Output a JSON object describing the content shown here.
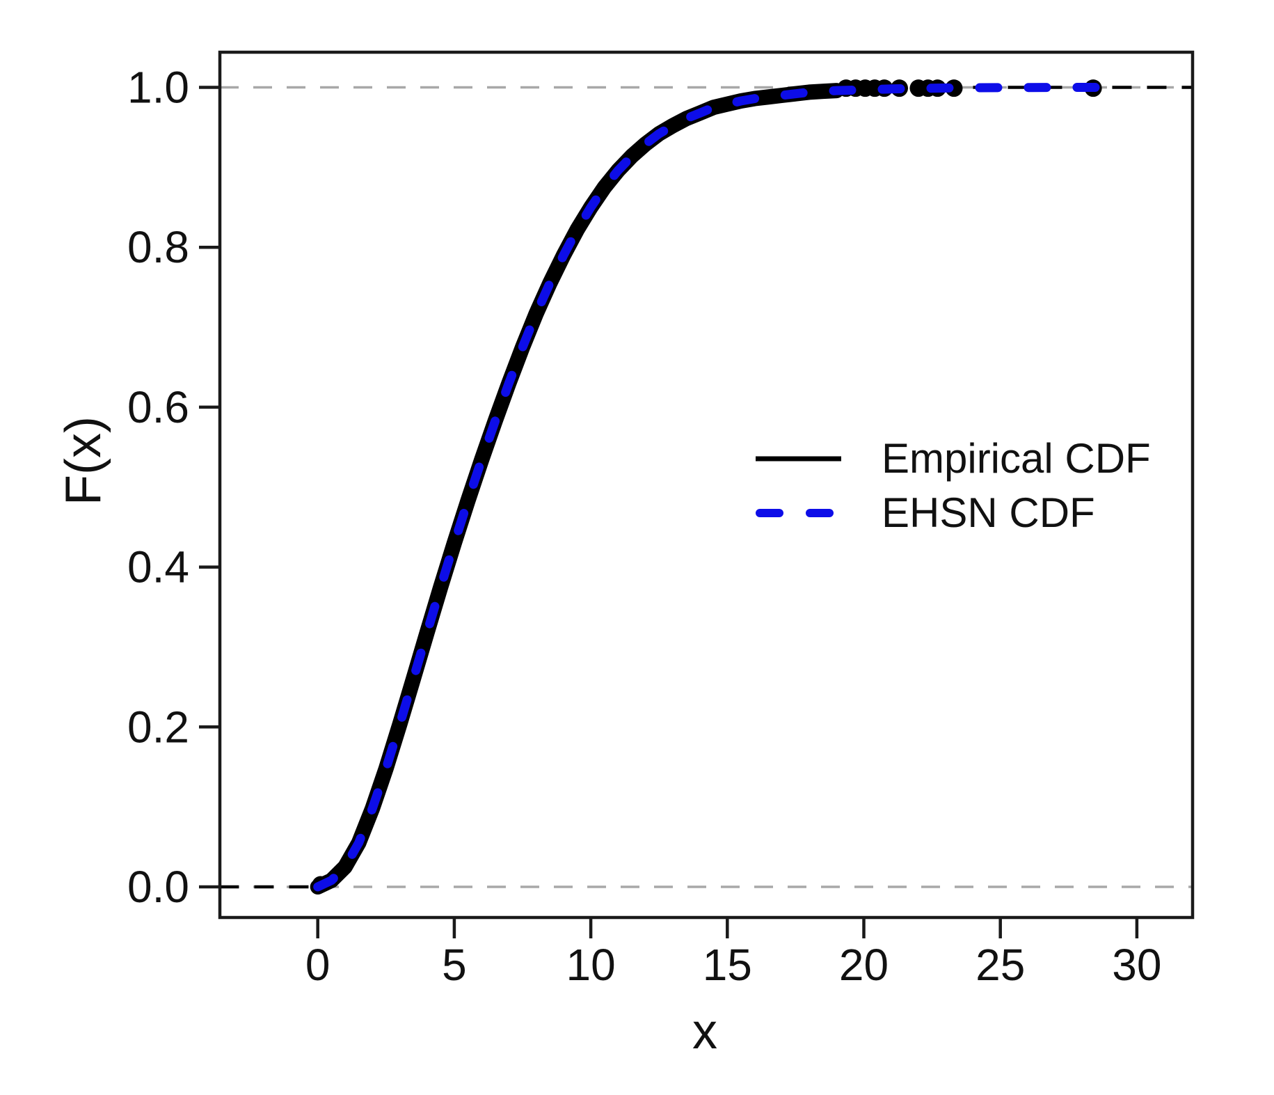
{
  "figure": {
    "kind": "R-style statistical plot",
    "background": "#ffffff"
  },
  "colors": {
    "empirical_line": "#000000",
    "ehsn_line": "#0D0DE8",
    "reference_dash": "#A8A8A8",
    "axis": "#1a1a1a",
    "text": "#111111"
  },
  "axis_titles": {
    "x": "x",
    "y": "F(x)"
  },
  "legend": {
    "position": "center-right",
    "entries": [
      {
        "label": "Empirical CDF",
        "style": "solid",
        "color": "#000000"
      },
      {
        "label": "EHSN CDF",
        "style": "dashed",
        "color": "#0D0DE8"
      }
    ]
  },
  "chart_data": {
    "type": "line",
    "title": "",
    "xlabel": "x",
    "ylabel": "F(x)",
    "xlim": [
      -3.6,
      32.0
    ],
    "ylim": [
      -0.04,
      1.04
    ],
    "grid": "off",
    "x_ticks": [
      0,
      5,
      10,
      15,
      20,
      25,
      30
    ],
    "x_tick_labels": [
      "0",
      "5",
      "10",
      "15",
      "20",
      "25",
      "30"
    ],
    "y_ticks": [
      0.0,
      0.2,
      0.4,
      0.6,
      0.8,
      1.0
    ],
    "y_tick_labels": [
      "0.0",
      "0.2",
      "0.4",
      "0.6",
      "0.8",
      "1.0"
    ],
    "reference_lines": [
      {
        "y": 0.0,
        "style": "dashed",
        "color": "#A8A8A8"
      },
      {
        "y": 1.0,
        "style": "dashed",
        "color": "#A8A8A8"
      }
    ],
    "extension_lines": [
      {
        "y": 0.0,
        "x1": -3.6,
        "x2": -0.05,
        "style": "dashed",
        "color": "#000000"
      },
      {
        "y": 1.0,
        "x1": 24.0,
        "x2": 32.0,
        "style": "dashed",
        "color": "#000000"
      }
    ],
    "curve": {
      "comment": "Both CDFs nearly coincide; shared sigmoid CDF read from plot",
      "x": [
        0,
        0.5,
        1,
        1.5,
        2,
        2.5,
        3,
        3.5,
        4,
        4.5,
        5,
        5.5,
        6,
        6.5,
        7,
        7.5,
        8,
        8.5,
        9,
        9.5,
        10,
        10.5,
        11,
        11.5,
        12,
        12.5,
        13,
        13.5,
        14,
        14.5,
        15,
        15.5,
        16,
        16.5,
        17,
        17.5,
        18,
        18.5,
        19,
        19.5,
        20,
        21,
        22,
        23,
        24,
        25,
        26,
        27,
        28,
        29
      ],
      "F": [
        0,
        0.008,
        0.025,
        0.055,
        0.098,
        0.148,
        0.203,
        0.26,
        0.318,
        0.375,
        0.43,
        0.483,
        0.534,
        0.583,
        0.63,
        0.675,
        0.717,
        0.755,
        0.79,
        0.822,
        0.85,
        0.875,
        0.896,
        0.914,
        0.929,
        0.942,
        0.952,
        0.961,
        0.968,
        0.975,
        0.979,
        0.983,
        0.986,
        0.988,
        0.99,
        0.992,
        0.994,
        0.995,
        0.996,
        0.9964,
        0.997,
        0.998,
        0.9987,
        0.9992,
        0.9995,
        0.9997,
        0.9998,
        0.9999,
        1,
        1
      ]
    },
    "series": [
      {
        "name": "Empirical CDF",
        "color": "#000000",
        "line_style": "solid",
        "line_width": 22,
        "x_end": 19.0,
        "start_point": [
          0.1,
          0.003
        ],
        "point_markers_x": [
          19.35,
          19.7,
          20.05,
          20.4,
          20.75,
          21.3,
          22.0,
          22.35,
          22.7,
          23.3,
          28.4
        ],
        "point_markers_F": 0.999
      },
      {
        "name": "EHSN CDF",
        "color": "#0D0DE8",
        "line_style": "dashed",
        "line_width": 13,
        "x_end": 29.0
      }
    ],
    "legend_position": "center-right"
  }
}
